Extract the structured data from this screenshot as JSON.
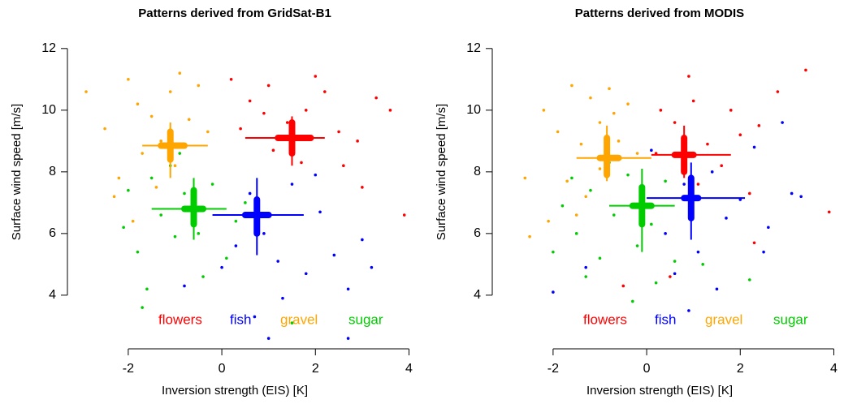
{
  "chart_data": [
    {
      "type": "scatter",
      "title": "Patterns derived from GridSat-B1",
      "x_label": "Inversion strength (EIS) [K]",
      "y_label": "Surface wind speed [m/s]",
      "xlim": [
        -3.3,
        4.2
      ],
      "ylim": [
        2.26,
        12.6
      ],
      "xticks": [
        -2,
        0,
        2,
        4
      ],
      "yticks": [
        4,
        6,
        8,
        10,
        12
      ],
      "series": [
        {
          "name": "flowers",
          "color": "#ff0000",
          "x": [
            0.2,
            0.6,
            1.0,
            1.4,
            1.8,
            2.2,
            2.5,
            2.9,
            3.3,
            3.6,
            1.1,
            0.4,
            1.7,
            2.6,
            0.9,
            2.0,
            3.9,
            3.0
          ],
          "y": [
            11.0,
            10.3,
            10.8,
            9.6,
            10.0,
            10.6,
            9.3,
            9.0,
            10.4,
            10.0,
            8.7,
            9.4,
            8.3,
            8.2,
            9.9,
            11.1,
            6.6,
            7.5
          ],
          "cross": {
            "x": 1.5,
            "y": 9.1,
            "x_thin": [
              0.5,
              2.2
            ],
            "x_thick": [
              1.2,
              1.9
            ],
            "y_thin": [
              8.2,
              9.8
            ],
            "y_thick": [
              8.6,
              9.6
            ]
          }
        },
        {
          "name": "fish",
          "color": "#0000ff",
          "x": [
            0.0,
            0.3,
            0.6,
            0.9,
            1.2,
            1.5,
            1.8,
            2.1,
            2.4,
            2.7,
            3.0,
            0.7,
            1.3,
            2.0,
            -0.8,
            1.0,
            2.7,
            3.2
          ],
          "y": [
            4.9,
            5.6,
            7.3,
            6.0,
            5.1,
            7.6,
            4.7,
            6.7,
            5.3,
            4.2,
            5.8,
            3.3,
            3.9,
            7.9,
            4.3,
            2.6,
            2.6,
            4.9
          ],
          "cross": {
            "x": 0.75,
            "y": 6.6,
            "x_thin": [
              -0.2,
              1.75
            ],
            "x_thick": [
              0.5,
              1.0
            ],
            "y_thin": [
              5.3,
              7.8
            ],
            "y_thick": [
              6.0,
              7.1
            ]
          }
        },
        {
          "name": "gravel",
          "color": "#ffa500",
          "x": [
            -2.9,
            -2.5,
            -2.2,
            -2.0,
            -1.8,
            -1.5,
            -1.3,
            -1.1,
            -0.9,
            -0.7,
            -0.5,
            -1.7,
            -2.3,
            -0.3,
            -1.0,
            -1.4,
            -0.8,
            -1.9
          ],
          "y": [
            10.6,
            9.4,
            7.8,
            11.0,
            10.2,
            9.8,
            9.0,
            10.6,
            11.2,
            9.7,
            10.8,
            8.6,
            7.2,
            9.3,
            8.2,
            7.5,
            8.9,
            6.4
          ],
          "cross": {
            "x": -1.1,
            "y": 8.85,
            "x_thin": [
              -1.7,
              -0.3
            ],
            "x_thick": [
              -1.3,
              -0.8
            ],
            "y_thin": [
              7.8,
              9.6
            ],
            "y_thick": [
              8.4,
              9.3
            ]
          }
        },
        {
          "name": "sugar",
          "color": "#00cc00",
          "x": [
            -2.1,
            -1.8,
            -1.5,
            -1.3,
            -1.0,
            -0.8,
            -0.5,
            -0.2,
            0.1,
            0.3,
            -1.6,
            -1.1,
            -0.4,
            0.5,
            -2.0,
            -1.7,
            1.5,
            -0.9
          ],
          "y": [
            6.2,
            5.4,
            7.8,
            6.6,
            5.9,
            7.3,
            6.0,
            7.6,
            5.2,
            6.4,
            4.2,
            8.2,
            4.6,
            7.0,
            7.4,
            3.6,
            3.1,
            8.6
          ],
          "cross": {
            "x": -0.6,
            "y": 6.8,
            "x_thin": [
              -1.5,
              0.1
            ],
            "x_thick": [
              -0.8,
              -0.4
            ],
            "y_thin": [
              5.8,
              7.8
            ],
            "y_thick": [
              6.3,
              7.4
            ]
          }
        }
      ]
    },
    {
      "type": "scatter",
      "title": "Patterns derived from MODIS",
      "x_label": "Inversion strength (EIS) [K]",
      "y_label": "Surface wind speed [m/s]",
      "xlim": [
        -3.3,
        4.2
      ],
      "ylim": [
        2.26,
        12.6
      ],
      "xticks": [
        -2,
        0,
        2,
        4
      ],
      "yticks": [
        4,
        6,
        8,
        10,
        12
      ],
      "series": [
        {
          "name": "flowers",
          "color": "#ff0000",
          "x": [
            0.3,
            0.6,
            1.0,
            1.3,
            1.6,
            2.0,
            2.4,
            2.8,
            3.4,
            0.9,
            1.1,
            0.2,
            1.8,
            2.2,
            3.9,
            0.5,
            2.3,
            -0.5
          ],
          "y": [
            10.0,
            9.6,
            10.3,
            8.9,
            8.2,
            9.2,
            9.5,
            10.6,
            11.3,
            11.1,
            7.6,
            8.6,
            10.0,
            7.3,
            6.7,
            4.6,
            5.7,
            4.3
          ],
          "cross": {
            "x": 0.8,
            "y": 8.55,
            "x_thin": [
              0.1,
              1.8
            ],
            "x_thick": [
              0.6,
              1.0
            ],
            "y_thin": [
              7.8,
              9.5
            ],
            "y_thick": [
              8.0,
              9.1
            ]
          }
        },
        {
          "name": "fish",
          "color": "#0000ff",
          "x": [
            0.1,
            0.4,
            0.8,
            1.1,
            1.4,
            1.7,
            2.0,
            2.3,
            2.6,
            2.9,
            3.1,
            0.6,
            1.5,
            2.5,
            -1.3,
            -2.0,
            3.3,
            0.9
          ],
          "y": [
            8.7,
            6.0,
            7.6,
            5.4,
            8.0,
            6.5,
            7.1,
            8.8,
            6.2,
            9.6,
            7.3,
            4.7,
            4.2,
            5.4,
            4.9,
            4.1,
            7.2,
            3.5
          ],
          "cross": {
            "x": 0.95,
            "y": 7.15,
            "x_thin": [
              0.0,
              2.1
            ],
            "x_thick": [
              0.8,
              1.1
            ],
            "y_thin": [
              5.8,
              8.3
            ],
            "y_thick": [
              6.5,
              7.8
            ]
          }
        },
        {
          "name": "gravel",
          "color": "#ffa500",
          "x": [
            -2.6,
            -2.2,
            -1.9,
            -1.6,
            -1.4,
            -1.2,
            -1.0,
            -0.8,
            -0.6,
            -0.4,
            -1.7,
            -2.1,
            -1.3,
            -0.2,
            -1.0,
            -2.5,
            -0.7,
            -1.5
          ],
          "y": [
            7.8,
            10.0,
            9.3,
            10.8,
            8.9,
            10.4,
            9.6,
            10.7,
            9.0,
            10.2,
            7.7,
            6.4,
            7.2,
            8.6,
            8.1,
            5.9,
            9.9,
            6.6
          ],
          "cross": {
            "x": -0.85,
            "y": 8.45,
            "x_thin": [
              -1.5,
              0.1
            ],
            "x_thick": [
              -1.0,
              -0.6
            ],
            "y_thin": [
              7.7,
              9.5
            ],
            "y_thick": [
              7.9,
              9.1
            ]
          }
        },
        {
          "name": "sugar",
          "color": "#00cc00",
          "x": [
            -1.8,
            -1.5,
            -1.2,
            -1.0,
            -0.7,
            -0.4,
            -0.2,
            0.1,
            0.4,
            0.6,
            -1.3,
            -0.8,
            0.2,
            1.2,
            -1.6,
            -2.0,
            2.2,
            -0.3
          ],
          "y": [
            6.9,
            6.0,
            7.4,
            5.2,
            6.6,
            7.9,
            5.6,
            6.3,
            7.7,
            5.1,
            4.6,
            8.3,
            4.4,
            5.0,
            7.8,
            5.4,
            4.5,
            3.8
          ],
          "cross": {
            "x": -0.1,
            "y": 6.9,
            "x_thin": [
              -0.8,
              0.6
            ],
            "x_thick": [
              -0.3,
              0.1
            ],
            "y_thin": [
              5.4,
              8.1
            ],
            "y_thick": [
              6.3,
              7.5
            ]
          }
        }
      ]
    }
  ]
}
